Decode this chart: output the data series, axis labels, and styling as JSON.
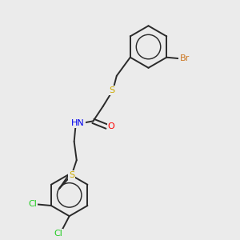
{
  "background_color": "#ebebeb",
  "bond_color": "#2a2a2a",
  "atom_colors": {
    "S": "#ccaa00",
    "N": "#0000ee",
    "O": "#ff0000",
    "Br": "#cc7722",
    "Cl": "#22cc22",
    "H": "#888888",
    "C": "#2a2a2a"
  },
  "font_size": 8.0,
  "line_width": 1.4
}
